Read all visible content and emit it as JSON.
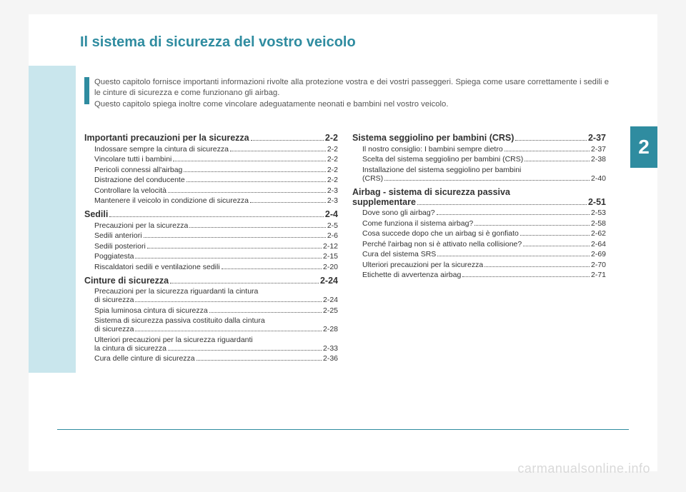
{
  "title": "Il sistema di sicurezza del vostro veicolo",
  "chapter_number": "2",
  "intro_lines": [
    "Questo capitolo fornisce importanti informazioni rivolte alla protezione vostra e dei vostri passeggeri. Spiega come usare correttamente i sedili e le cinture di sicurezza e come funzionano gli airbag.",
    "Questo capitolo spiega inoltre come vincolare adeguatamente neonati e bambini nel vostro veicolo."
  ],
  "colors": {
    "accent": "#2f8ca0",
    "band": "#c9e6ed",
    "text": "#333333",
    "intro_text": "#555555",
    "watermark": "#d9d9d9",
    "bg": "#ffffff"
  },
  "fonts": {
    "title_size": 20,
    "section_size": 12.5,
    "sub_size": 10.5,
    "intro_size": 11.3
  },
  "toc": {
    "left": [
      {
        "type": "sec",
        "label": "Importanti precauzioni per la sicurezza",
        "page": "2-2"
      },
      {
        "type": "sub",
        "label": "Indossare sempre la cintura di sicurezza",
        "page": "2-2"
      },
      {
        "type": "sub",
        "label": "Vincolare tutti i bambini",
        "page": "2-2"
      },
      {
        "type": "sub",
        "label": "Pericoli connessi all'airbag",
        "page": "2-2"
      },
      {
        "type": "sub",
        "label": "Distrazione del conducente",
        "page": "2-2"
      },
      {
        "type": "sub",
        "label": "Controllare la velocità",
        "page": "2-3"
      },
      {
        "type": "sub",
        "label": "Mantenere il veicolo in condizione di sicurezza",
        "page": "2-3"
      },
      {
        "type": "sec",
        "label": "Sedili",
        "page": "2-4"
      },
      {
        "type": "sub",
        "label": "Precauzioni per la sicurezza",
        "page": "2-5"
      },
      {
        "type": "sub",
        "label": "Sedili anteriori",
        "page": "2-6"
      },
      {
        "type": "sub",
        "label": "Sedili posteriori",
        "page": "2-12"
      },
      {
        "type": "sub",
        "label": "Poggiatesta",
        "page": "2-15"
      },
      {
        "type": "sub",
        "label": "Riscaldatori sedili e ventilazione sedili",
        "page": "2-20"
      },
      {
        "type": "sec",
        "label": "Cinture di sicurezza",
        "page": "2-24"
      },
      {
        "type": "sub-multi",
        "lines": [
          "Precauzioni per la sicurezza riguardanti la cintura",
          "di sicurezza"
        ],
        "page": "2-24"
      },
      {
        "type": "sub",
        "label": "Spia luminosa cintura di sicurezza",
        "page": "2-25"
      },
      {
        "type": "sub-multi",
        "lines": [
          "Sistema di sicurezza passiva costituito dalla cintura",
          "di sicurezza"
        ],
        "page": "2-28"
      },
      {
        "type": "sub-multi",
        "lines": [
          "Ulteriori precauzioni per la sicurezza riguardanti",
          "la cintura di sicurezza"
        ],
        "page": "2-33"
      },
      {
        "type": "sub",
        "label": "Cura delle cinture di sicurezza",
        "page": "2-36"
      }
    ],
    "right": [
      {
        "type": "sec",
        "label": "Sistema seggiolino per bambini (CRS)",
        "page": "2-37"
      },
      {
        "type": "sub",
        "label": "Il nostro consiglio: I bambini sempre dietro",
        "page": "2-37"
      },
      {
        "type": "sub",
        "label": "Scelta del sistema seggiolino per bambini (CRS)",
        "page": "2-38"
      },
      {
        "type": "sub-multi",
        "lines": [
          "Installazione del sistema seggiolino per bambini",
          "(CRS)"
        ],
        "page": "2-40"
      },
      {
        "type": "sec-multi",
        "lines": [
          "Airbag - sistema di sicurezza passiva",
          "supplementare"
        ],
        "page": "2-51"
      },
      {
        "type": "sub",
        "label": "Dove sono gli airbag?",
        "page": "2-53"
      },
      {
        "type": "sub",
        "label": "Come funziona il sistema airbag?",
        "page": "2-58"
      },
      {
        "type": "sub",
        "label": "Cosa succede dopo che un airbag si è gonfiato",
        "page": "2-62"
      },
      {
        "type": "sub",
        "label": "Perché l'airbag non si è attivato nella collisione?",
        "page": "2-64"
      },
      {
        "type": "sub",
        "label": "Cura del sistema SRS",
        "page": "2-69"
      },
      {
        "type": "sub",
        "label": "Ulteriori precauzioni per la sicurezza",
        "page": "2-70"
      },
      {
        "type": "sub",
        "label": "Etichette di avvertenza airbag",
        "page": "2-71"
      }
    ]
  },
  "watermark": "carmanualsonline.info"
}
